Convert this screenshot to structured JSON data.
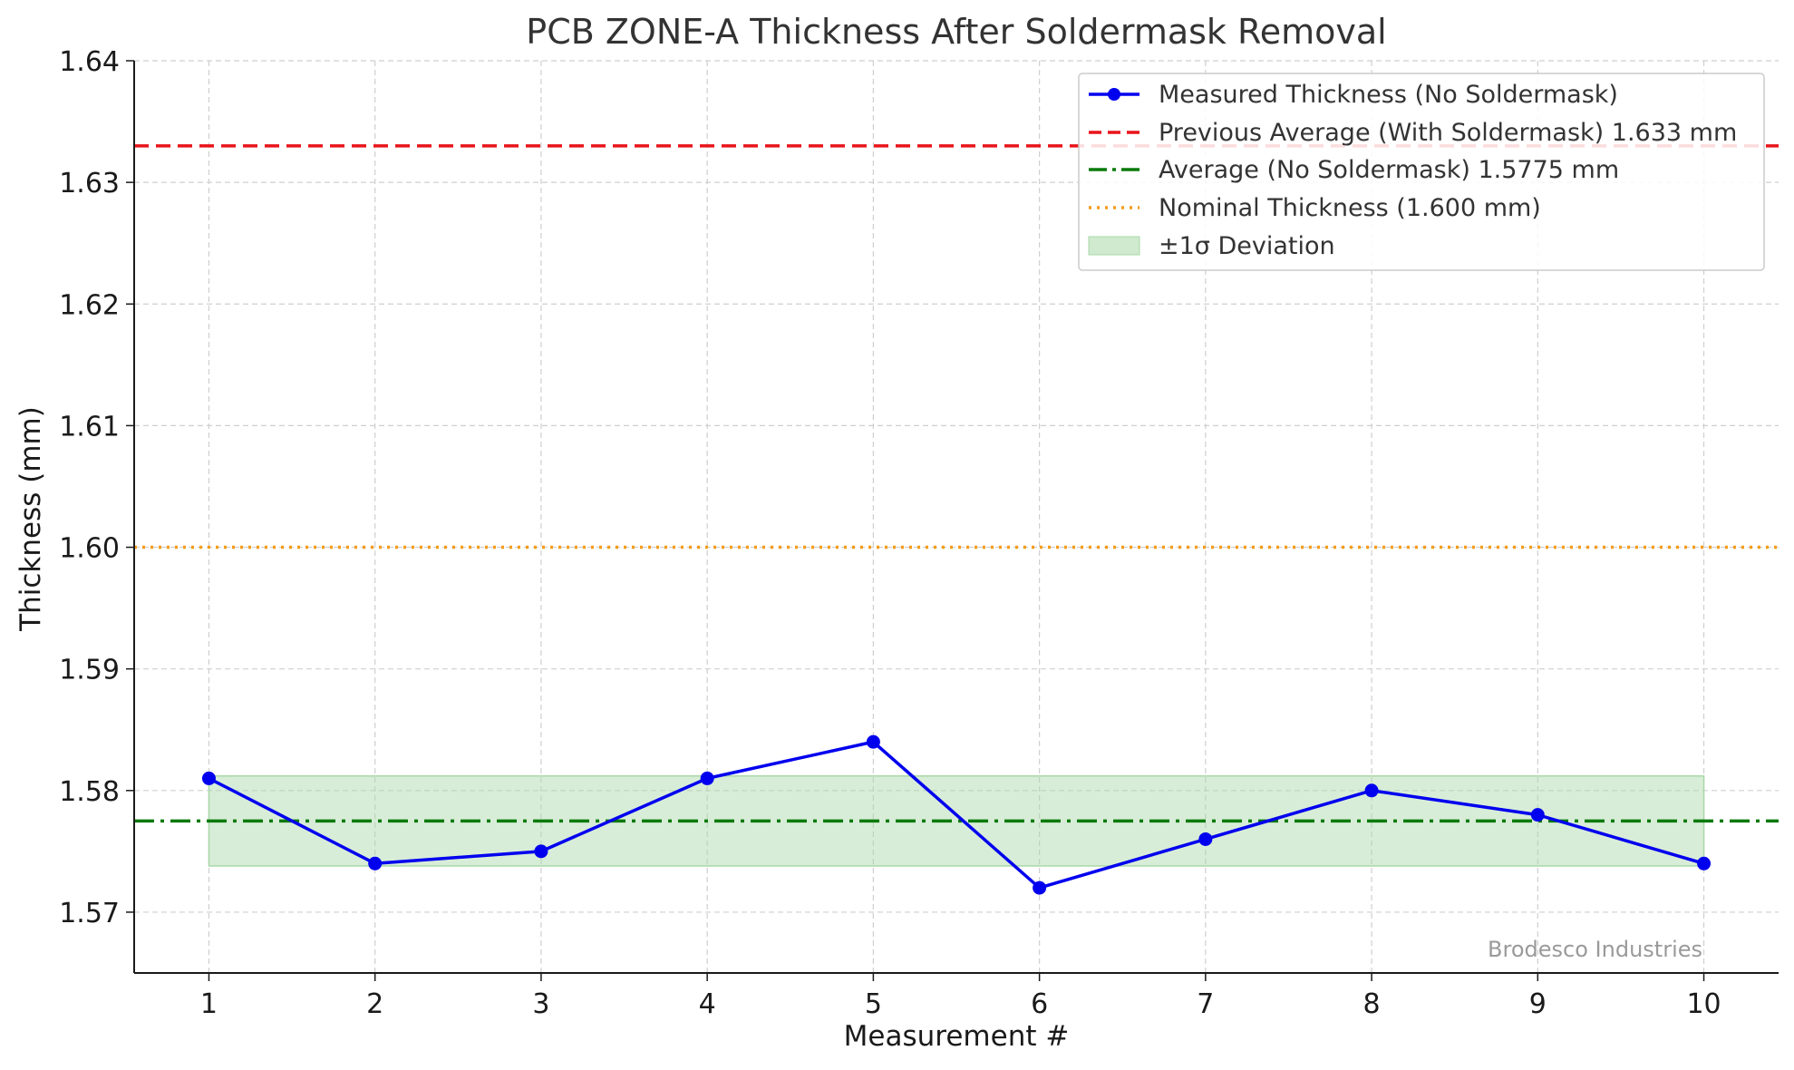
{
  "chart_data": {
    "type": "line",
    "title": "PCB ZONE-A Thickness After Soldermask Removal",
    "xlabel": "Measurement #",
    "ylabel": "Thickness (mm)",
    "x": [
      1,
      2,
      3,
      4,
      5,
      6,
      7,
      8,
      9,
      10
    ],
    "xlim": [
      0.55,
      10.45
    ],
    "ylim": [
      1.565,
      1.64
    ],
    "yticks": [
      "1.57",
      "1.58",
      "1.59",
      "1.60",
      "1.61",
      "1.62",
      "1.63",
      "1.64"
    ],
    "grid": true,
    "legend_position": "top-right",
    "series": [
      {
        "name": "Measured Thickness (No Soldermask)",
        "style": "solid-marker",
        "color": "#0000ee",
        "values": [
          1.581,
          1.574,
          1.575,
          1.581,
          1.584,
          1.572,
          1.576,
          1.58,
          1.578,
          1.574
        ]
      }
    ],
    "reference_lines": [
      {
        "name": "Previous Average (With Soldermask) 1.633 mm",
        "y": 1.633,
        "style": "dashed",
        "color": "#e8141a"
      },
      {
        "name": "Average (No Soldermask) 1.5775 mm",
        "y": 1.5775,
        "style": "dashdot",
        "color": "#0a7a0a"
      },
      {
        "name": "Nominal Thickness (1.600 mm)",
        "y": 1.6,
        "style": "dotted",
        "color": "#f59c1a"
      }
    ],
    "band": {
      "name": "±1σ Deviation",
      "y_low": 1.5738,
      "y_high": 1.5812,
      "x_start": 1,
      "x_end": 10,
      "color": "#a8d8a8"
    },
    "watermark": "Brodesco Industries"
  }
}
